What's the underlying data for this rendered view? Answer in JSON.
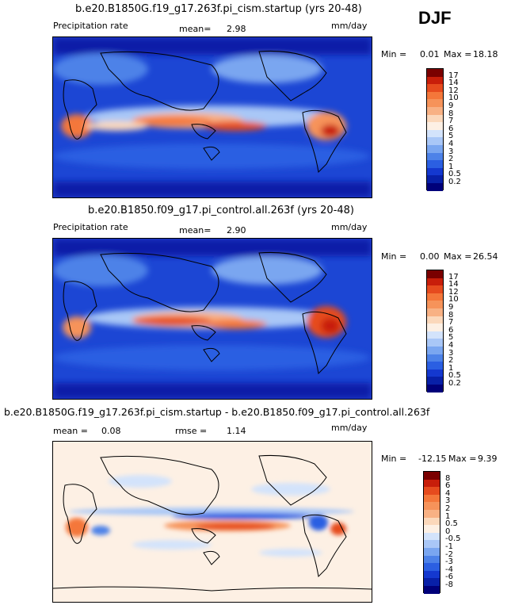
{
  "season": "DJF",
  "panels": [
    {
      "title": "b.e20.B1850G.f19_g17.263f.pi_cism.startup (yrs 20-48)",
      "var_label": "Precipitation rate",
      "stat1_label": "mean=",
      "stat1_value": "2.98",
      "units": "mm/day",
      "min_label": "Min =",
      "min_value": "0.01",
      "max_label": "Max =",
      "max_value": "18.18",
      "legend": {
        "labels": [
          "17",
          "14",
          "12",
          "10",
          "9",
          "8",
          "7",
          "6",
          "5",
          "4",
          "3",
          "2",
          "1",
          "0.5",
          "0.2"
        ],
        "colors": [
          "#7a0000",
          "#c81e0a",
          "#e64b1e",
          "#f4773a",
          "#f6935a",
          "#f8b184",
          "#fbd8bb",
          "#fdf0e4",
          "#d3e3fb",
          "#a9c7f7",
          "#7aa6f0",
          "#4d82e8",
          "#2b5fe2",
          "#1438cf",
          "#0820a8",
          "#00007a"
        ]
      }
    },
    {
      "title": "b.e20.B1850.f09_g17.pi_control.all.263f (yrs 20-48)",
      "var_label": "Precipitation rate",
      "stat1_label": "mean=",
      "stat1_value": "2.90",
      "units": "mm/day",
      "min_label": "Min =",
      "min_value": "0.00",
      "max_label": "Max =",
      "max_value": "26.54",
      "legend": {
        "labels": [
          "17",
          "14",
          "12",
          "10",
          "9",
          "8",
          "7",
          "6",
          "5",
          "4",
          "3",
          "2",
          "1",
          "0.5",
          "0.2"
        ],
        "colors": [
          "#7a0000",
          "#c81e0a",
          "#e64b1e",
          "#f4773a",
          "#f6935a",
          "#f8b184",
          "#fbd8bb",
          "#fdf0e4",
          "#d3e3fb",
          "#a9c7f7",
          "#7aa6f0",
          "#4d82e8",
          "#2b5fe2",
          "#1438cf",
          "#0820a8",
          "#00007a"
        ]
      }
    },
    {
      "title": "b.e20.B1850G.f19_g17.263f.pi_cism.startup - b.e20.B1850.f09_g17.pi_control.all.263f",
      "stat1_label": "mean =",
      "stat1_value": "0.08",
      "stat2_label": "rmse =",
      "stat2_value": "1.14",
      "units": "mm/day",
      "min_label": "Min =",
      "min_value": "-12.15",
      "max_label": "Max =",
      "max_value": "9.39",
      "legend": {
        "labels": [
          "8",
          "6",
          "4",
          "3",
          "2",
          "1",
          "0.5",
          "0",
          "-0.5",
          "-1",
          "-2",
          "-3",
          "-4",
          "-6",
          "-8"
        ],
        "colors": [
          "#7a0000",
          "#c81e0a",
          "#e64b1e",
          "#f4773a",
          "#f6935a",
          "#f8b184",
          "#fbd8bb",
          "#fdf0e4",
          "#d3e3fb",
          "#a9c7f7",
          "#7aa6f0",
          "#4d82e8",
          "#2b5fe2",
          "#1438cf",
          "#0820a8",
          "#00007a"
        ]
      }
    }
  ]
}
